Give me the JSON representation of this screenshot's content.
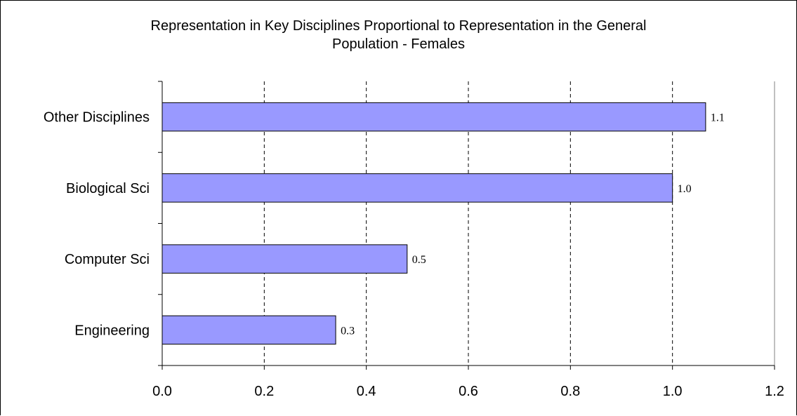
{
  "chart_data": {
    "type": "bar",
    "orientation": "horizontal",
    "title": {
      "line1": "Representation in Key Disciplines Proportional to Representation in the General",
      "line2": "Population  - Females"
    },
    "categories": [
      "Other Disciplines",
      "Biological Sci",
      "Computer Sci",
      "Engineering"
    ],
    "values": [
      1.065,
      1.0,
      0.48,
      0.34
    ],
    "data_labels": [
      "1.1",
      "1.0",
      "0.5",
      "0.3"
    ],
    "xlim": [
      0,
      1.2
    ],
    "x_ticks": [
      0.0,
      0.2,
      0.4,
      0.6,
      0.8,
      1.0,
      1.2
    ],
    "x_tick_labels": [
      "0.0",
      "0.2",
      "0.4",
      "0.6",
      "0.8",
      "1.0",
      "1.2"
    ],
    "grid": "vertical dashed",
    "legend": "none",
    "bar_color": "#9999FF",
    "bar_edge_color": "#000000"
  }
}
